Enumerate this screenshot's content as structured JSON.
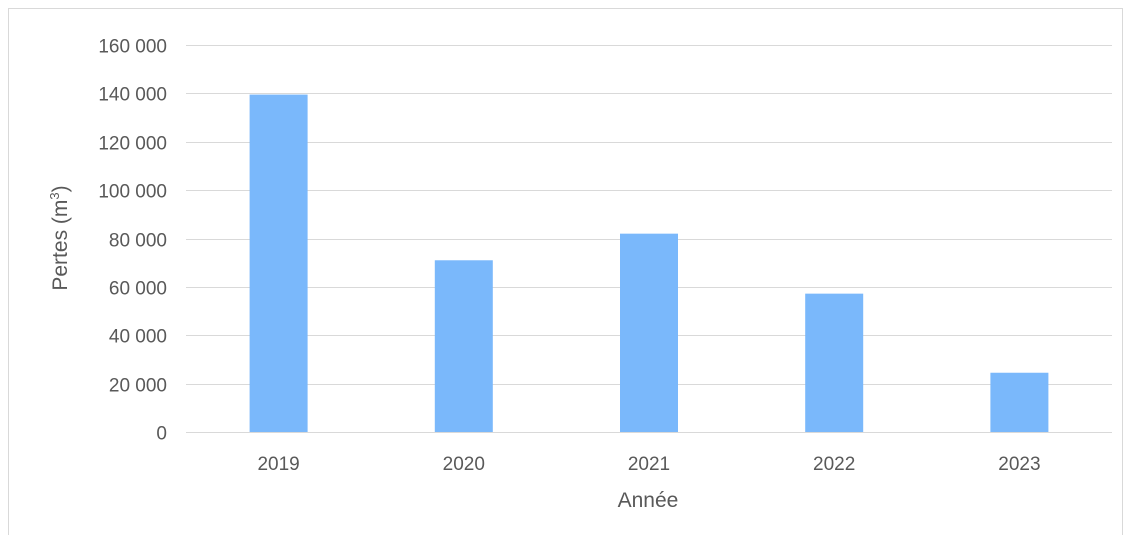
{
  "chart_data": {
    "type": "bar",
    "categories": [
      "2019",
      "2020",
      "2021",
      "2022",
      "2023"
    ],
    "values": [
      139500,
      71000,
      82000,
      57200,
      24500
    ],
    "xlabel": "Année",
    "ylabel": "Pertes (m³)",
    "ylabel_base": "Pertes (m",
    "ylabel_sup": "3",
    "ylabel_close": ")",
    "ylim": [
      0,
      160000
    ],
    "yticks": [
      0,
      20000,
      40000,
      60000,
      80000,
      100000,
      120000,
      140000,
      160000
    ],
    "ytick_labels": [
      "0",
      "20 000",
      "40 000",
      "60 000",
      "80 000",
      "100 000",
      "120 000",
      "140 000",
      "160 000"
    ],
    "grid": true,
    "legend": "none",
    "bar_color": "#7AB8FB",
    "grid_color": "#d9d9d9",
    "text_color": "#595959"
  }
}
